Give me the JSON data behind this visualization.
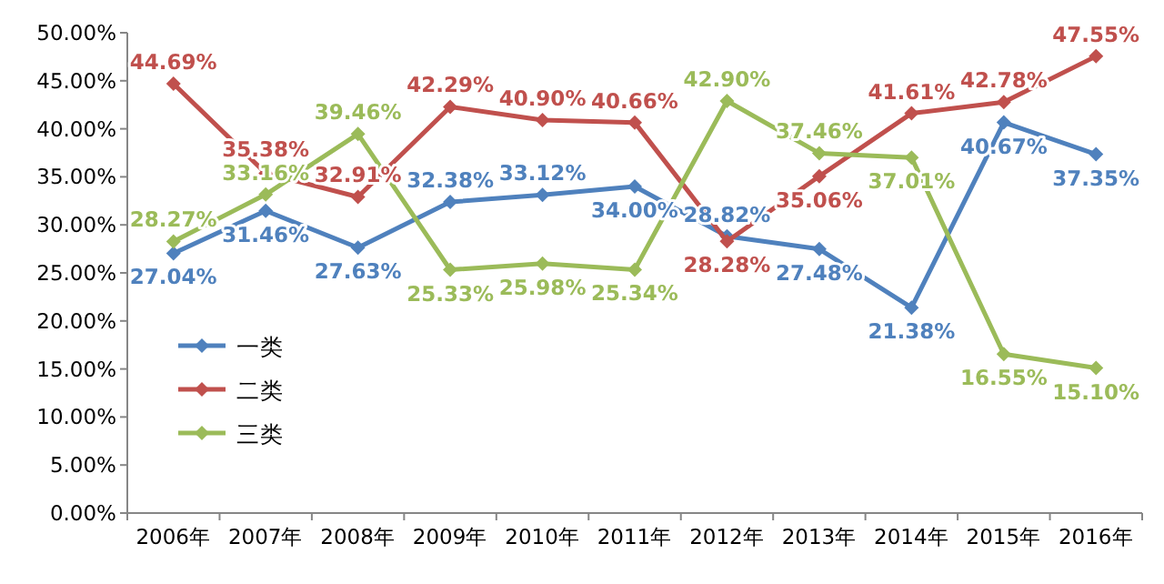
{
  "chart_data": {
    "type": "line",
    "categories": [
      "2006年",
      "2007年",
      "2008年",
      "2009年",
      "2010年",
      "2011年",
      "2012年",
      "2013年",
      "2014年",
      "2015年",
      "2016年"
    ],
    "ylim": [
      0,
      50
    ],
    "yticks": [
      {
        "value": 0,
        "label": "0.00%"
      },
      {
        "value": 5,
        "label": "5.00%"
      },
      {
        "value": 10,
        "label": "10.00%"
      },
      {
        "value": 15,
        "label": "15.00%"
      },
      {
        "value": 20,
        "label": "20.00%"
      },
      {
        "value": 25,
        "label": "25.00%"
      },
      {
        "value": 30,
        "label": "30.00%"
      },
      {
        "value": 35,
        "label": "35.00%"
      },
      {
        "value": 40,
        "label": "40.00%"
      },
      {
        "value": 45,
        "label": "45.00%"
      },
      {
        "value": 50,
        "label": "50.00%"
      }
    ],
    "legend": "left",
    "marker": "diamond",
    "line_style": "solid",
    "series": [
      {
        "name": "一类",
        "color": "#4f81bd",
        "values": [
          27.04,
          31.46,
          27.63,
          32.38,
          33.12,
          34.0,
          28.82,
          27.48,
          21.38,
          40.67,
          37.35
        ],
        "value_labels": [
          "27.04%",
          "31.46%",
          "27.63%",
          "32.38%",
          "33.12%",
          "34.00%",
          "28.82%",
          "27.48%",
          "21.38%",
          "40.67%",
          "37.35%"
        ]
      },
      {
        "name": "二类",
        "color": "#c0504d",
        "values": [
          44.69,
          35.38,
          32.91,
          42.29,
          40.9,
          40.66,
          28.28,
          35.06,
          41.61,
          42.78,
          47.55
        ],
        "value_labels": [
          "44.69%",
          "35.38%",
          "32.91%",
          "42.29%",
          "40.90%",
          "40.66%",
          "28.28%",
          "35.06%",
          "41.61%",
          "42.78%",
          "47.55%"
        ]
      },
      {
        "name": "三类",
        "color": "#9bbb59",
        "values": [
          28.27,
          33.16,
          39.46,
          25.33,
          25.98,
          25.34,
          42.9,
          37.46,
          37.01,
          16.55,
          15.1
        ],
        "value_labels": [
          "28.27%",
          "33.16%",
          "39.46%",
          "25.33%",
          "25.98%",
          "25.34%",
          "42.90%",
          "37.46%",
          "37.01%",
          "16.55%",
          "15.10%"
        ]
      }
    ]
  }
}
